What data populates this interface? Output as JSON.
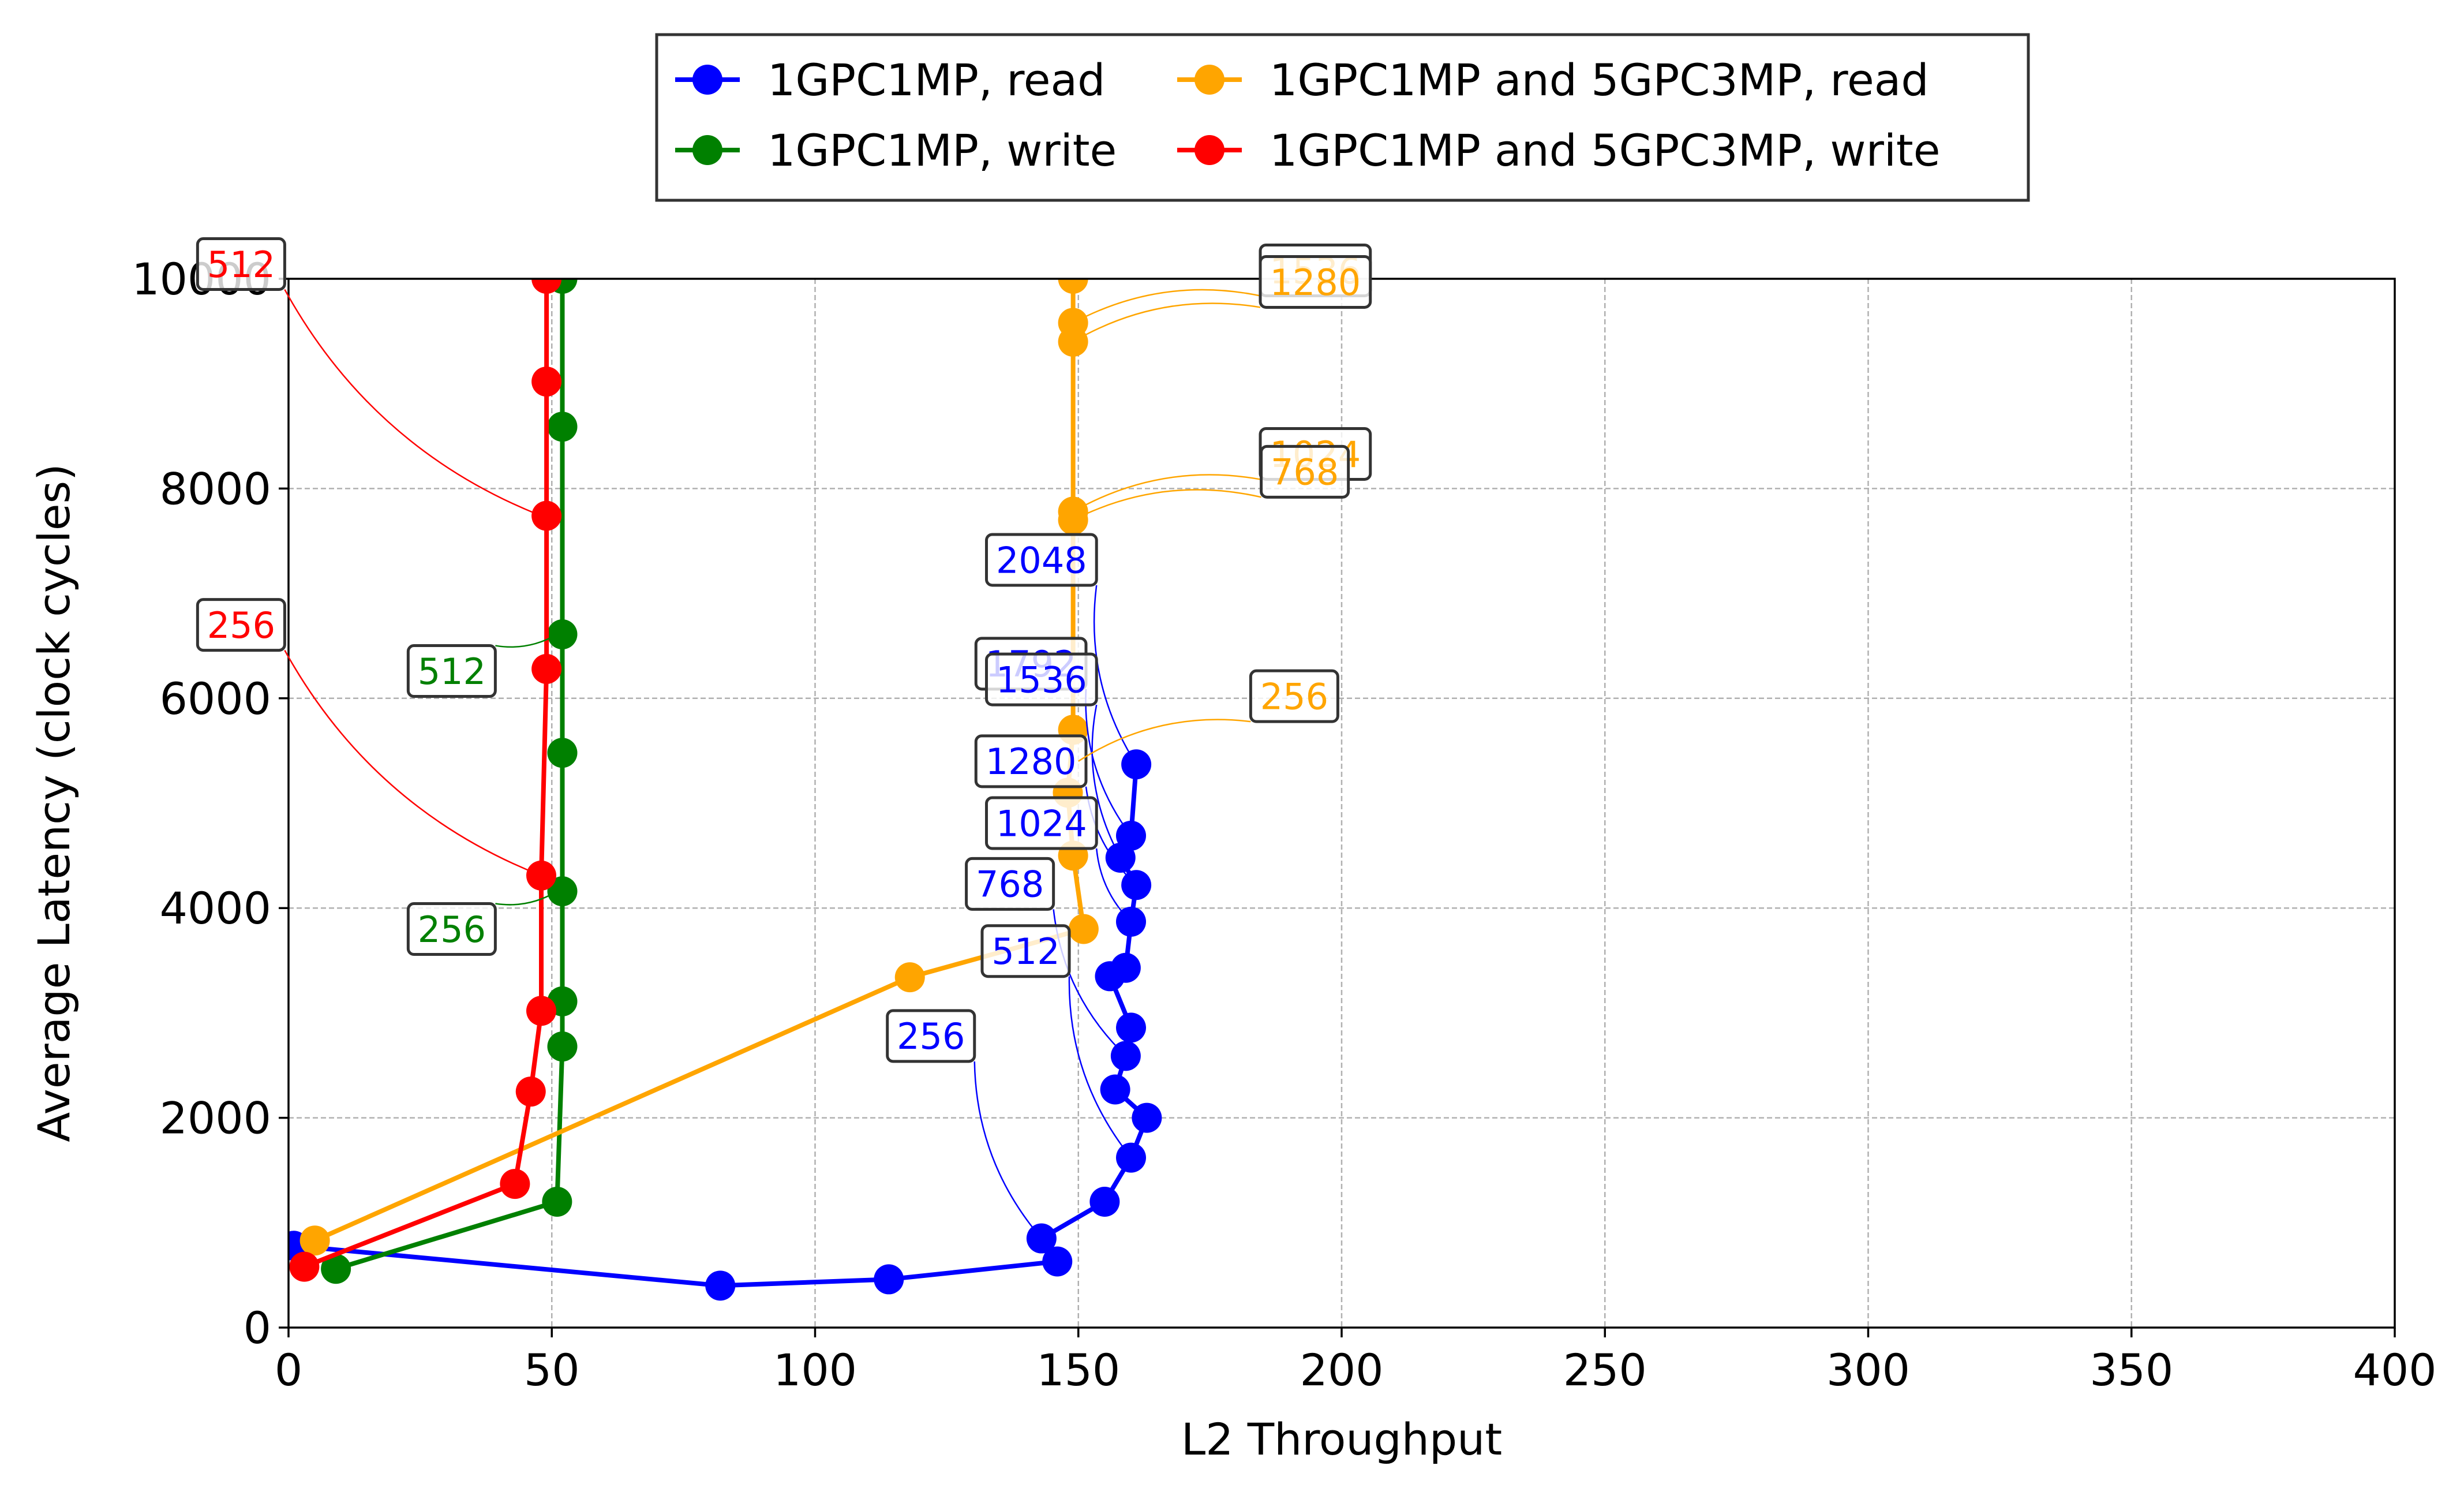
{
  "chart_data": {
    "type": "line",
    "xlabel": "L2 Throughput",
    "ylabel": "Average Latency (clock cycles)",
    "xlim": [
      0,
      400
    ],
    "ylim": [
      0,
      10000
    ],
    "x_ticks": [
      0,
      50,
      100,
      150,
      200,
      250,
      300,
      350,
      400
    ],
    "y_ticks": [
      0,
      2000,
      4000,
      6000,
      8000,
      10000
    ],
    "x_tick_labels": [
      "0",
      "50",
      "100",
      "150",
      "200",
      "250",
      "300",
      "350",
      "400"
    ],
    "y_tick_labels": [
      "0",
      "2000",
      "4000",
      "6000",
      "8000",
      "10000"
    ],
    "grid": true,
    "legend_position": "top-center, above plot",
    "series": [
      {
        "name": "1GPC1MP, read",
        "color": "#0000ff",
        "points": [
          [
            1,
            780
          ],
          [
            82,
            400
          ],
          [
            114,
            460
          ],
          [
            146,
            630
          ],
          [
            143,
            850
          ],
          [
            155,
            1200
          ],
          [
            160,
            1620
          ],
          [
            163,
            2000
          ],
          [
            157,
            2270
          ],
          [
            159,
            2590
          ],
          [
            160,
            2860
          ],
          [
            156,
            3350
          ],
          [
            159,
            3430
          ],
          [
            160,
            3870
          ],
          [
            161,
            4220
          ],
          [
            158,
            4480
          ],
          [
            160,
            4690
          ],
          [
            161,
            5370
          ]
        ]
      },
      {
        "name": "1GPC1MP, write",
        "color": "#008000",
        "points": [
          [
            9,
            560
          ],
          [
            51,
            1200
          ],
          [
            52,
            2680
          ],
          [
            52,
            3110
          ],
          [
            52,
            4160
          ],
          [
            52,
            5480
          ],
          [
            52,
            6610
          ],
          [
            52,
            8590
          ],
          [
            52,
            10000
          ]
        ]
      },
      {
        "name": "1GPC1MP and 5GPC3MP, read",
        "color": "#ffa500",
        "points": [
          [
            5,
            830
          ],
          [
            118,
            3340
          ],
          [
            151,
            3800
          ],
          [
            149,
            4500
          ],
          [
            148,
            5100
          ],
          [
            149,
            5700
          ],
          [
            149,
            7700
          ],
          [
            149,
            7780
          ],
          [
            149,
            9400
          ],
          [
            149,
            9580
          ],
          [
            149,
            10000
          ]
        ]
      },
      {
        "name": "1GPC1MP and 5GPC3MP, write",
        "color": "#ff0000",
        "points": [
          [
            3,
            580
          ],
          [
            43,
            1370
          ],
          [
            46,
            2250
          ],
          [
            48,
            3020
          ],
          [
            48,
            4310
          ],
          [
            49,
            6280
          ],
          [
            49,
            7740
          ],
          [
            49,
            9020
          ],
          [
            49,
            10000
          ]
        ]
      }
    ],
    "annotations": [
      {
        "text": "2048",
        "color": "#0000ff",
        "at": [
          161,
          5370
        ],
        "label_at": [
          143,
          7320
        ]
      },
      {
        "text": "1792",
        "color": "#0000ff",
        "at": [
          160,
          4690
        ],
        "label_at": [
          141,
          6330
        ]
      },
      {
        "text": "1536",
        "color": "#0000ff",
        "at": [
          158,
          4480
        ],
        "label_at": [
          143,
          6180
        ]
      },
      {
        "text": "1280",
        "color": "#0000ff",
        "at": [
          161,
          4220
        ],
        "label_at": [
          141,
          5400
        ]
      },
      {
        "text": "1024",
        "color": "#0000ff",
        "at": [
          160,
          3870
        ],
        "label_at": [
          143,
          4810
        ]
      },
      {
        "text": "768",
        "color": "#0000ff",
        "at": [
          159,
          2590
        ],
        "label_at": [
          137,
          4230
        ]
      },
      {
        "text": "512",
        "color": "#0000ff",
        "at": [
          160,
          1620
        ],
        "label_at": [
          140,
          3590
        ]
      },
      {
        "text": "256",
        "color": "#0000ff",
        "at": [
          143,
          850
        ],
        "label_at": [
          122,
          2780
        ]
      },
      {
        "text": "512",
        "color": "#008000",
        "at": [
          51,
          6610
        ],
        "label_at": [
          31,
          6260
        ]
      },
      {
        "text": "256",
        "color": "#008000",
        "at": [
          51,
          4160
        ],
        "label_at": [
          31,
          3800
        ]
      },
      {
        "text": "512",
        "color": "#ff0000",
        "at": [
          48,
          7740
        ],
        "label_at": [
          -9,
          10140
        ]
      },
      {
        "text": "256",
        "color": "#ff0000",
        "at": [
          48,
          4310
        ],
        "label_at": [
          -9,
          6700
        ]
      },
      {
        "text": "1536",
        "color": "#ffa500",
        "at": [
          149,
          9580
        ],
        "label_at": [
          195,
          10080
        ]
      },
      {
        "text": "1280",
        "color": "#ffa500",
        "at": [
          149,
          9400
        ],
        "label_at": [
          195,
          9970
        ]
      },
      {
        "text": "1024",
        "color": "#ffa500",
        "at": [
          149,
          7780
        ],
        "label_at": [
          195,
          8330
        ]
      },
      {
        "text": "768",
        "color": "#ffa500",
        "at": [
          149,
          7700
        ],
        "label_at": [
          193,
          8160
        ]
      },
      {
        "text": "256",
        "color": "#ffa500",
        "at": [
          150,
          5400
        ],
        "label_at": [
          191,
          6020
        ]
      }
    ]
  }
}
